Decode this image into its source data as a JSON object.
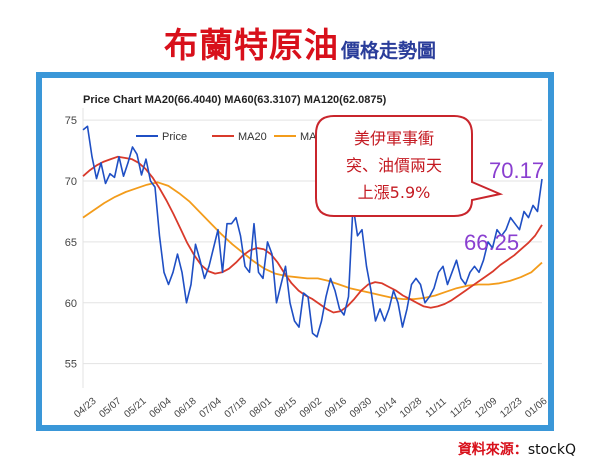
{
  "header": {
    "title_main": "布蘭特原油",
    "title_sub": "價格走勢圖"
  },
  "source": {
    "label": "資料來源：",
    "name": "stockQ"
  },
  "chart_data": {
    "type": "line",
    "title": "Price Chart MA20(66.4040) MA60(63.3107) MA120(62.0875)",
    "xlabel": "",
    "ylabel": "",
    "ylim": [
      53,
      76
    ],
    "yticks": [
      55,
      60,
      65,
      70,
      75
    ],
    "xticks": [
      "04/23",
      "05/07",
      "05/21",
      "06/04",
      "06/18",
      "07/04",
      "07/18",
      "08/01",
      "08/15",
      "09/02",
      "09/16",
      "09/30",
      "10/14",
      "10/28",
      "11/11",
      "11/25",
      "12/09",
      "12/23",
      "01/06"
    ],
    "grid": true,
    "legend_position": "top-left",
    "series": [
      {
        "name": "Price",
        "color": "#1f4fc4",
        "values": [
          74.2,
          74.5,
          72.0,
          70.2,
          71.5,
          69.8,
          70.6,
          70.3,
          72.0,
          70.4,
          71.5,
          72.8,
          72.2,
          70.5,
          71.8,
          70.0,
          69.5,
          65.5,
          62.5,
          61.5,
          62.5,
          64.0,
          62.5,
          60.0,
          61.5,
          64.8,
          63.5,
          62.0,
          63.0,
          64.5,
          66.0,
          62.5,
          66.5,
          66.5,
          67.0,
          65.5,
          63.0,
          62.5,
          66.5,
          62.5,
          62.0,
          65.0,
          64.0,
          60.0,
          61.5,
          63.0,
          60.0,
          58.5,
          58.0,
          60.8,
          60.5,
          57.5,
          57.2,
          58.5,
          60.5,
          62.0,
          61.0,
          59.5,
          59.0,
          60.5,
          68.0,
          65.5,
          66.0,
          63.0,
          61.0,
          58.5,
          59.5,
          58.5,
          59.5,
          61.0,
          60.0,
          58.0,
          59.5,
          61.5,
          62.0,
          61.5,
          60.0,
          60.5,
          61.2,
          62.5,
          63.0,
          61.5,
          62.5,
          63.5,
          62.0,
          61.5,
          62.5,
          63.0,
          62.5,
          63.5,
          65.0,
          64.5,
          66.0,
          65.5,
          66.0,
          67.0,
          66.5,
          66.0,
          67.5,
          67.0,
          68.0,
          67.5,
          70.17
        ]
      },
      {
        "name": "MA20",
        "color": "#d93a2b",
        "values": [
          70.4,
          70.9,
          71.3,
          71.6,
          71.8,
          72.0,
          71.9,
          71.8,
          71.5,
          71.0,
          70.3,
          69.4,
          68.4,
          67.3,
          66.1,
          64.9,
          63.9,
          63.1,
          62.6,
          62.4,
          62.5,
          62.8,
          63.3,
          63.9,
          64.3,
          64.5,
          64.4,
          64.0,
          63.3,
          62.4,
          61.6,
          61.0,
          60.6,
          60.3,
          59.9,
          59.5,
          59.2,
          59.3,
          59.7,
          60.3,
          61.0,
          61.5,
          61.7,
          61.6,
          61.3,
          61.0,
          60.6,
          60.3,
          60.0,
          59.7,
          59.6,
          59.7,
          59.9,
          60.2,
          60.6,
          61.0,
          61.4,
          61.8,
          62.2,
          62.6,
          63.1,
          63.5,
          63.9,
          64.4,
          64.9,
          65.5,
          66.4
        ]
      },
      {
        "name": "MA60",
        "color": "#f39c1b",
        "values": [
          67.0,
          67.6,
          68.2,
          68.7,
          69.1,
          69.4,
          69.7,
          69.9,
          69.6,
          69.0,
          68.3,
          67.4,
          66.5,
          65.6,
          64.8,
          64.1,
          63.4,
          62.8,
          62.4,
          62.2,
          62.1,
          62.0,
          62.0,
          61.8,
          61.5,
          61.2,
          61.0,
          60.8,
          60.6,
          60.4,
          60.3,
          60.3,
          60.4,
          60.6,
          60.9,
          61.2,
          61.4,
          61.5,
          61.5,
          61.6,
          61.8,
          62.1,
          62.5,
          63.3
        ]
      }
    ],
    "annotations": [
      {
        "lines": [
          "美伊軍事衝",
          "突、油價兩天",
          "上漲5.9%"
        ]
      },
      {
        "text": "70.17",
        "color": "#8a3fd0"
      },
      {
        "text": "66.25",
        "color": "#8a3fd0"
      }
    ]
  }
}
